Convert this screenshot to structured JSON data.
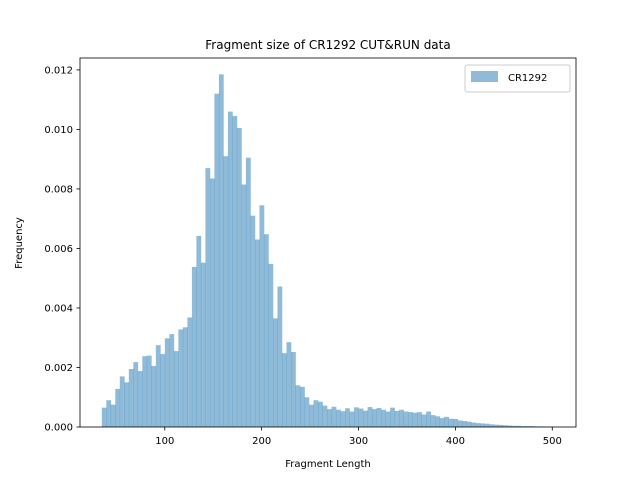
{
  "chart_data": {
    "type": "bar",
    "title": "Fragment size of CR1292 CUT&RUN data",
    "xlabel": "Fragment Length",
    "ylabel": "Frequency",
    "xlim": [
      12.5,
      524.5
    ],
    "ylim": [
      0,
      0.0124
    ],
    "xticks": [
      100,
      200,
      300,
      400,
      500
    ],
    "xtick_labels": [
      "100",
      "200",
      "300",
      "400",
      "500"
    ],
    "yticks": [
      0.0,
      0.002,
      0.004,
      0.006,
      0.008,
      0.01,
      0.012
    ],
    "ytick_labels": [
      "0.000",
      "0.002",
      "0.004",
      "0.006",
      "0.008",
      "0.010",
      "0.012"
    ],
    "bin_start": 35,
    "bin_width": 4.65,
    "color": "#1f77b4",
    "alpha": 0.5,
    "grid": false,
    "legend_position": "top-right",
    "series": [
      {
        "name": "CR1292",
        "values": [
          0.00065,
          0.0009,
          0.00075,
          0.00128,
          0.0017,
          0.0015,
          0.00195,
          0.00218,
          0.00188,
          0.00238,
          0.0024,
          0.00205,
          0.00275,
          0.00245,
          0.00298,
          0.00312,
          0.00255,
          0.00328,
          0.00335,
          0.00368,
          0.00538,
          0.00642,
          0.00552,
          0.0087,
          0.00835,
          0.0112,
          0.01185,
          0.0091,
          0.0106,
          0.01045,
          0.01005,
          0.00815,
          0.00905,
          0.0071,
          0.0063,
          0.00745,
          0.00648,
          0.00548,
          0.00365,
          0.00472,
          0.00248,
          0.00285,
          0.00252,
          0.0014,
          0.00135,
          0.001,
          0.00075,
          0.0009,
          0.00085,
          0.00072,
          0.0006,
          0.00068,
          0.00058,
          0.00053,
          0.00063,
          0.00052,
          0.00066,
          0.00062,
          0.00055,
          0.00067,
          0.0006,
          0.00064,
          0.00058,
          0.00052,
          0.00065,
          0.00054,
          0.00058,
          0.00052,
          0.0005,
          0.00048,
          0.0005,
          0.00042,
          0.00052,
          0.0004,
          0.00036,
          0.0003,
          0.00034,
          0.00028,
          0.00027,
          0.00022,
          0.0002,
          0.00018,
          0.00015,
          0.00013,
          0.00012,
          0.00011,
          9e-05,
          8e-05,
          7e-05,
          6e-05,
          5e-05,
          4e-05,
          4e-05,
          3e-05,
          3e-05,
          3e-05,
          2e-05,
          2e-05,
          1e-05,
          1e-05
        ]
      }
    ]
  }
}
